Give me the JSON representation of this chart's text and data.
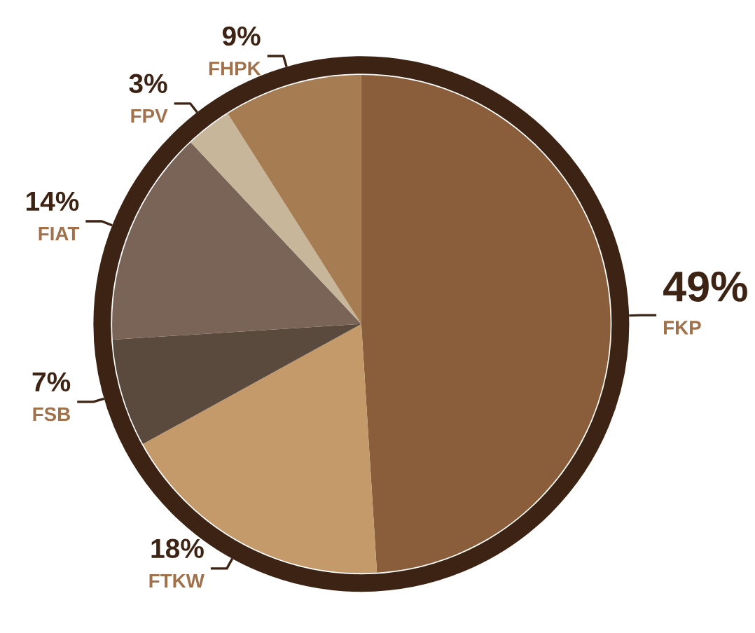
{
  "chart_data": {
    "type": "pie",
    "categories": [
      "FKP",
      "FTKW",
      "FSB",
      "FIAT",
      "FPV",
      "FHPK"
    ],
    "values": [
      49,
      18,
      7,
      14,
      3,
      9
    ],
    "colors": [
      "#8a5e3b",
      "#c49a6b",
      "#5a4a3e",
      "#7a6357",
      "#c8b69b",
      "#a67c52"
    ],
    "value_labels": [
      "49%",
      "18%",
      "7%",
      "14%",
      "3%",
      "9%"
    ],
    "legend": false
  }
}
